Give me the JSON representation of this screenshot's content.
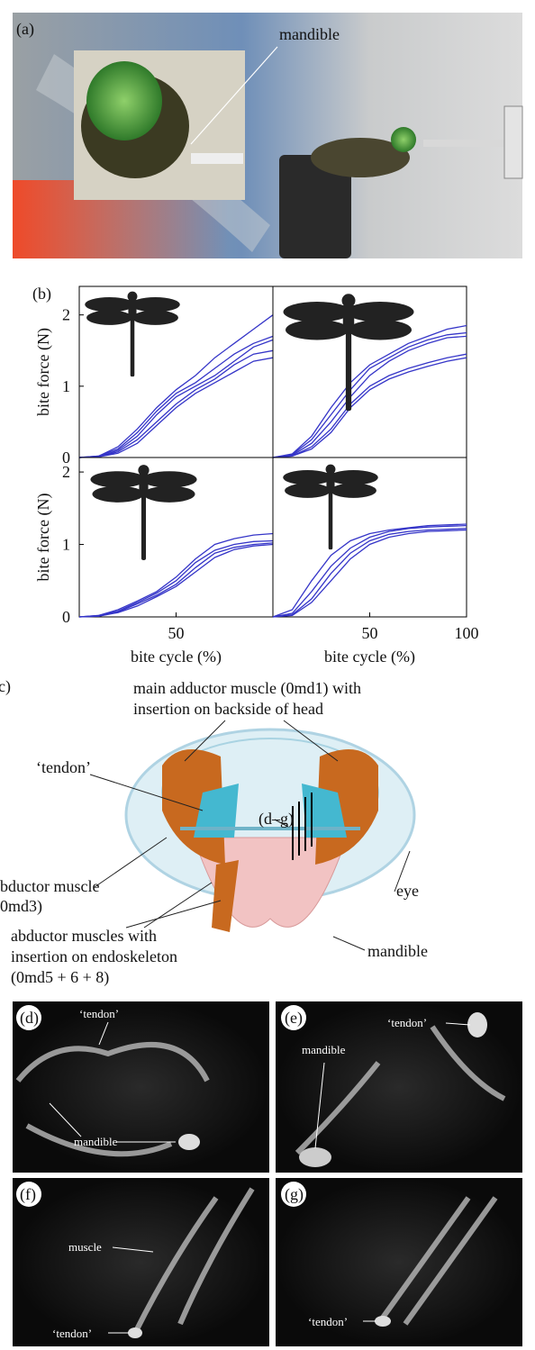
{
  "panel_a": {
    "label": "(a)",
    "annotation": "mandible"
  },
  "panel_b": {
    "label": "(b)"
  },
  "chart_data": [
    {
      "type": "line",
      "x": [
        0,
        10,
        20,
        30,
        40,
        50,
        60,
        70,
        80,
        90,
        100
      ],
      "xlim": [
        0,
        100
      ],
      "ylim": [
        0,
        2.4
      ],
      "yticks": [
        0,
        1,
        2
      ],
      "ylabel": "bite force (N)",
      "series": [
        {
          "color": "#3535c8",
          "values": [
            0,
            0.02,
            0.15,
            0.4,
            0.7,
            0.95,
            1.15,
            1.4,
            1.6,
            1.8,
            2.0
          ]
        },
        {
          "color": "#3535c8",
          "values": [
            0,
            0.02,
            0.12,
            0.35,
            0.65,
            0.9,
            1.05,
            1.25,
            1.45,
            1.6,
            1.7
          ]
        },
        {
          "color": "#3535c8",
          "values": [
            0,
            0.01,
            0.1,
            0.3,
            0.6,
            0.85,
            1.0,
            1.15,
            1.35,
            1.55,
            1.65
          ]
        },
        {
          "color": "#3535c8",
          "values": [
            0,
            0.01,
            0.08,
            0.25,
            0.5,
            0.75,
            0.95,
            1.1,
            1.3,
            1.45,
            1.5
          ]
        },
        {
          "color": "#3535c8",
          "values": [
            0,
            0.01,
            0.06,
            0.2,
            0.45,
            0.7,
            0.9,
            1.05,
            1.2,
            1.35,
            1.4
          ]
        }
      ]
    },
    {
      "type": "line",
      "x": [
        0,
        10,
        20,
        30,
        40,
        50,
        60,
        70,
        80,
        90,
        100
      ],
      "xlim": [
        0,
        100
      ],
      "ylim": [
        0,
        2.4
      ],
      "series": [
        {
          "color": "#3535c8",
          "values": [
            0,
            0.05,
            0.3,
            0.7,
            1.05,
            1.3,
            1.45,
            1.6,
            1.7,
            1.8,
            1.85
          ]
        },
        {
          "color": "#3535c8",
          "values": [
            0,
            0.04,
            0.25,
            0.6,
            0.95,
            1.25,
            1.4,
            1.55,
            1.65,
            1.72,
            1.75
          ]
        },
        {
          "color": "#3535c8",
          "values": [
            0,
            0.03,
            0.2,
            0.5,
            0.85,
            1.15,
            1.35,
            1.5,
            1.6,
            1.68,
            1.7
          ]
        },
        {
          "color": "#3535c8",
          "values": [
            0,
            0.02,
            0.15,
            0.4,
            0.75,
            1.0,
            1.15,
            1.25,
            1.33,
            1.4,
            1.45
          ]
        },
        {
          "color": "#3535c8",
          "values": [
            0,
            0.02,
            0.12,
            0.35,
            0.7,
            0.95,
            1.1,
            1.2,
            1.28,
            1.35,
            1.4
          ]
        }
      ]
    },
    {
      "type": "line",
      "x": [
        0,
        10,
        20,
        30,
        40,
        50,
        60,
        70,
        80,
        90,
        100
      ],
      "xlim": [
        0,
        100
      ],
      "ylim": [
        0,
        2.2
      ],
      "yticks": [
        0,
        1,
        2
      ],
      "xticks": [
        50
      ],
      "ylabel": "bite force (N)",
      "xlabel": "bite cycle (%)",
      "series": [
        {
          "color": "#3535c8",
          "values": [
            0,
            0.02,
            0.1,
            0.22,
            0.35,
            0.55,
            0.8,
            1.0,
            1.08,
            1.13,
            1.15
          ]
        },
        {
          "color": "#3535c8",
          "values": [
            0,
            0.02,
            0.08,
            0.2,
            0.33,
            0.5,
            0.75,
            0.92,
            1.0,
            1.04,
            1.05
          ]
        },
        {
          "color": "#3535c8",
          "values": [
            0,
            0.01,
            0.07,
            0.18,
            0.3,
            0.45,
            0.68,
            0.88,
            0.96,
            1.0,
            1.02
          ]
        },
        {
          "color": "#3535c8",
          "values": [
            0,
            0.01,
            0.06,
            0.15,
            0.28,
            0.42,
            0.62,
            0.82,
            0.93,
            0.98,
            1.0
          ]
        }
      ]
    },
    {
      "type": "line",
      "x": [
        0,
        10,
        20,
        30,
        40,
        50,
        60,
        70,
        80,
        90,
        100
      ],
      "xlim": [
        0,
        100
      ],
      "ylim": [
        0,
        2.2
      ],
      "xticks": [
        50,
        100
      ],
      "xlabel": "bite cycle (%)",
      "series": [
        {
          "color": "#3535c8",
          "values": [
            0,
            0.1,
            0.5,
            0.85,
            1.05,
            1.15,
            1.2,
            1.23,
            1.26,
            1.27,
            1.28
          ]
        },
        {
          "color": "#3535c8",
          "values": [
            0,
            0.05,
            0.35,
            0.7,
            0.95,
            1.1,
            1.18,
            1.22,
            1.24,
            1.25,
            1.26
          ]
        },
        {
          "color": "#3535c8",
          "values": [
            0,
            0.03,
            0.25,
            0.6,
            0.88,
            1.05,
            1.14,
            1.18,
            1.2,
            1.21,
            1.22
          ]
        },
        {
          "color": "#3535c8",
          "values": [
            0,
            0.02,
            0.2,
            0.5,
            0.8,
            1.0,
            1.1,
            1.15,
            1.18,
            1.19,
            1.2
          ]
        }
      ]
    }
  ],
  "panel_c": {
    "label": "c)",
    "main_adductor": [
      "main adductor muscle (0md1) with",
      "insertion on backside of head"
    ],
    "tendon": "‘tendon’",
    "section_ref": "(d–g)",
    "abductor": [
      "bductor muscle",
      "0md3)"
    ],
    "eye": "eye",
    "abductors_endoskeleton": [
      "abductor muscles with",
      "insertion on endoskeleton",
      "(0md5 + 6 + 8)"
    ],
    "mandible": "mandible"
  },
  "panels_d_g": [
    {
      "label": "(d)",
      "annotations": [
        "‘tendon’",
        "mandible"
      ]
    },
    {
      "label": "(e)",
      "annotations": [
        "‘tendon’",
        "mandible"
      ]
    },
    {
      "label": "(f)",
      "annotations": [
        "muscle",
        "‘tendon’"
      ]
    },
    {
      "label": "(g)",
      "annotations": [
        "‘tendon’"
      ]
    }
  ]
}
